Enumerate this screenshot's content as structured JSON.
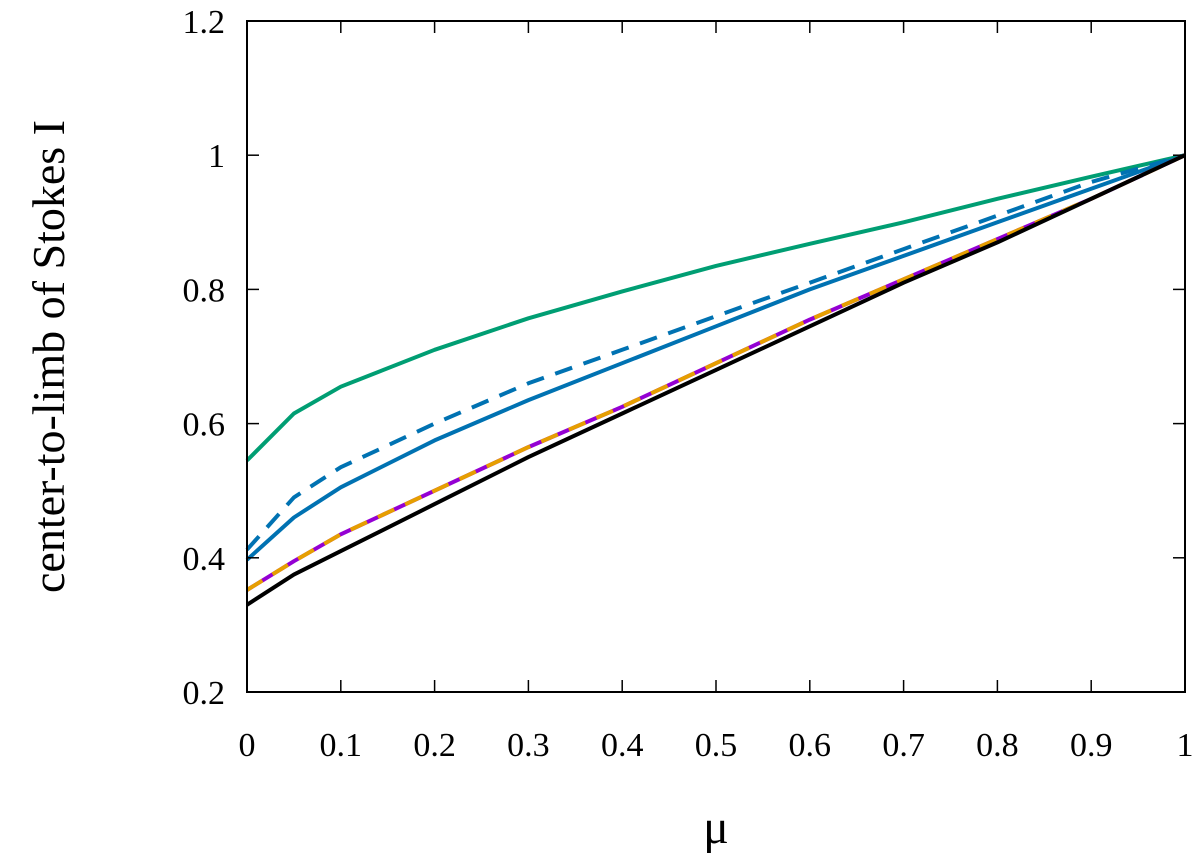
{
  "chart_data": {
    "type": "line",
    "title": "",
    "xlabel": "μ",
    "ylabel": "center-to-limb of Stokes I",
    "xlim": [
      0,
      1
    ],
    "ylim": [
      0.2,
      1.2
    ],
    "x_ticks": [
      "0",
      "0.1",
      "0.2",
      "0.3",
      "0.4",
      "0.5",
      "0.6",
      "0.7",
      "0.8",
      "0.9",
      "1"
    ],
    "y_ticks": [
      "0.2",
      "0.4",
      "0.6",
      "0.8",
      "1",
      "1.2"
    ],
    "grid": false,
    "legend": "none",
    "series": [
      {
        "color": "#009e73",
        "style": "solid",
        "x": [
          0,
          0.05,
          0.1,
          0.2,
          0.3,
          0.4,
          0.5,
          0.6,
          0.7,
          0.8,
          0.9,
          1
        ],
        "y": [
          0.545,
          0.615,
          0.655,
          0.71,
          0.757,
          0.797,
          0.835,
          0.868,
          0.9,
          0.935,
          0.968,
          1.0
        ]
      },
      {
        "color": "#0072b2",
        "style": "dashed",
        "x": [
          0,
          0.05,
          0.1,
          0.2,
          0.3,
          0.4,
          0.5,
          0.6,
          0.7,
          0.8,
          0.9,
          1
        ],
        "y": [
          0.412,
          0.49,
          0.535,
          0.6,
          0.66,
          0.71,
          0.76,
          0.81,
          0.86,
          0.91,
          0.96,
          1.0
        ]
      },
      {
        "color": "#0072b2",
        "style": "solid",
        "x": [
          0,
          0.05,
          0.1,
          0.2,
          0.3,
          0.4,
          0.5,
          0.6,
          0.7,
          0.8,
          0.9,
          1
        ],
        "y": [
          0.397,
          0.46,
          0.505,
          0.575,
          0.635,
          0.69,
          0.745,
          0.8,
          0.85,
          0.9,
          0.95,
          1.0
        ]
      },
      {
        "color": "#9400d3",
        "style": "solid",
        "x": [
          0,
          0.05,
          0.1,
          0.2,
          0.3,
          0.4,
          0.5,
          0.6,
          0.7,
          0.8,
          0.9,
          1
        ],
        "y": [
          0.352,
          0.395,
          0.435,
          0.5,
          0.565,
          0.625,
          0.69,
          0.755,
          0.815,
          0.875,
          0.935,
          1.0
        ]
      },
      {
        "color": "#e69f00",
        "style": "dashed",
        "x": [
          0,
          0.05,
          0.1,
          0.2,
          0.3,
          0.4,
          0.5,
          0.6,
          0.7,
          0.8,
          0.9,
          1
        ],
        "y": [
          0.352,
          0.395,
          0.435,
          0.5,
          0.565,
          0.625,
          0.69,
          0.755,
          0.815,
          0.875,
          0.935,
          1.0
        ]
      },
      {
        "color": "#000000",
        "style": "solid",
        "x": [
          0,
          0.05,
          0.1,
          0.2,
          0.3,
          0.4,
          0.5,
          0.6,
          0.7,
          0.8,
          0.9,
          1
        ],
        "y": [
          0.33,
          0.375,
          0.41,
          0.48,
          0.55,
          0.615,
          0.68,
          0.745,
          0.81,
          0.87,
          0.935,
          1.0
        ]
      }
    ]
  }
}
